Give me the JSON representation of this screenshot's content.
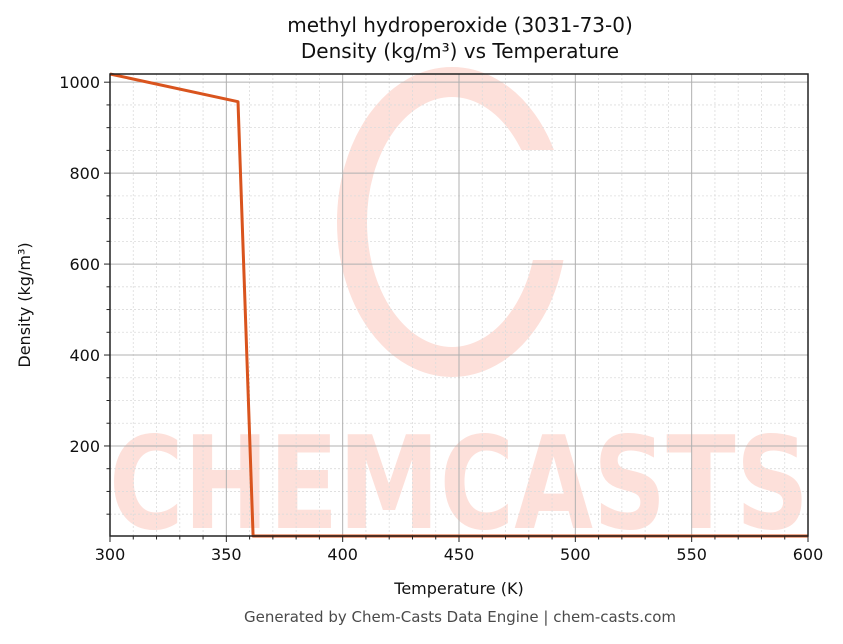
{
  "title": {
    "line1": "methyl hydroperoxide (3031-73-0)",
    "line2": "Density (kg/m³) vs Temperature"
  },
  "footer": "Generated by Chem-Casts Data Engine | chem-casts.com",
  "watermark": {
    "text": "CHEMCASTS",
    "color": "#fde0da"
  },
  "colors": {
    "line": "#d9541e",
    "grid_major": "#b0b0b0",
    "grid_minor": "#dcdcdc",
    "axis": "#222222"
  },
  "chart_data": {
    "type": "line",
    "title": "methyl hydroperoxide (3031-73-0) Density (kg/m³) vs Temperature",
    "xlabel": "Temperature (K)",
    "ylabel": "Density (kg/m³)",
    "xlim": [
      300,
      600
    ],
    "ylim": [
      2,
      1018
    ],
    "xticks": [
      300,
      350,
      400,
      450,
      500,
      550,
      600
    ],
    "yticks": [
      200,
      400,
      600,
      800,
      1000
    ],
    "grid": true,
    "minor_grid": true,
    "legend": null,
    "series": [
      {
        "name": "Density",
        "x": [
          300,
          355,
          361.5,
          600
        ],
        "y": [
          1018,
          957,
          2,
          2
        ]
      }
    ]
  }
}
